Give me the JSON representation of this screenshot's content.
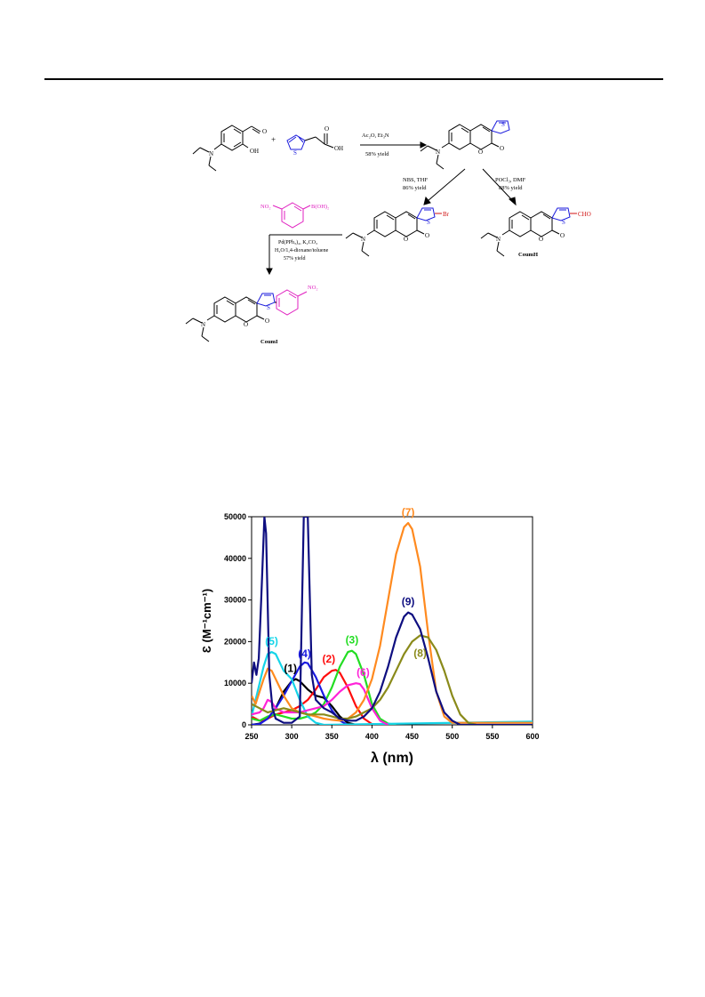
{
  "scheme": {
    "reagents": {
      "step1_conditions": "Ac₂O, Et₃N",
      "step1_yield": "58% yield",
      "step2a_conditions": "NBS, THF",
      "step2a_yield": "86% yield",
      "step2b_conditions": "POCl₃, DMF",
      "step2b_yield": "88% yield",
      "step3_conditions_1": "Pd(PPh₃)₄, K₂CO₃",
      "step3_conditions_2": "H₂O/1,4-dioxane/toluene",
      "step3_yield": "57% yield"
    },
    "atoms": {
      "oxygen": "O",
      "carbonyl_o": "O",
      "oh": "OH",
      "nitrogen": "N",
      "sulfur": "S",
      "bromine": "Br",
      "formyl": "CHO",
      "nitro": "NO₂",
      "boronic_acid": "B(OH)₂",
      "plus": "+"
    },
    "compound_labels": {
      "aldehyde_product": "CoumH",
      "nitrophenyl_product": "CoumI"
    },
    "colors": {
      "thiophene": "#1a1adc",
      "substituent": "#d01010",
      "nitrophenyl": "#e020c0",
      "skeleton": "#000000"
    }
  },
  "chart_data": {
    "type": "line",
    "xlabel": "λ (nm)",
    "ylabel": "Ɛ (M⁻¹cm⁻¹)",
    "xlim": [
      250,
      600
    ],
    "ylim": [
      0,
      50000
    ],
    "xticks": [
      250,
      300,
      350,
      400,
      450,
      500,
      550,
      600
    ],
    "yticks": [
      0,
      10000,
      20000,
      30000,
      40000,
      50000
    ],
    "grid": false,
    "series": [
      {
        "name": "(1)",
        "color": "#000000",
        "x": [
          250,
          260,
          270,
          280,
          290,
          300,
          305,
          310,
          320,
          330,
          340,
          350,
          360,
          370,
          380,
          400
        ],
        "y": [
          0,
          300,
          1500,
          4000,
          8000,
          10500,
          11000,
          10500,
          8500,
          7000,
          6500,
          4500,
          2000,
          500,
          0,
          0
        ]
      },
      {
        "name": "(2)",
        "color": "#ff0d0d",
        "x": [
          250,
          260,
          270,
          280,
          290,
          300,
          310,
          320,
          330,
          340,
          350,
          355,
          360,
          370,
          380,
          390,
          400,
          410
        ],
        "y": [
          2000,
          1000,
          1500,
          2500,
          3000,
          3500,
          4500,
          6000,
          8500,
          11500,
          13000,
          13200,
          12500,
          9000,
          4500,
          1500,
          200,
          0
        ]
      },
      {
        "name": "(3)",
        "color": "#22dd22",
        "x": [
          250,
          260,
          270,
          280,
          290,
          300,
          310,
          320,
          330,
          340,
          350,
          360,
          370,
          375,
          380,
          390,
          400,
          410,
          420,
          430
        ],
        "y": [
          1500,
          1000,
          2000,
          2500,
          2000,
          1500,
          1500,
          2000,
          3000,
          5000,
          9000,
          14000,
          17500,
          17800,
          17000,
          12000,
          5000,
          1500,
          300,
          0
        ]
      },
      {
        "name": "(4)",
        "color": "#1a1ae0",
        "x": [
          250,
          260,
          270,
          280,
          290,
          300,
          310,
          316,
          320,
          330,
          340,
          350,
          360,
          370
        ],
        "y": [
          0,
          200,
          1500,
          4000,
          7000,
          10500,
          14000,
          15000,
          14800,
          11500,
          7000,
          3500,
          1000,
          0
        ]
      },
      {
        "name": "(5)",
        "color": "#15d4e8",
        "x": [
          250,
          255,
          260,
          265,
          270,
          275,
          280,
          285,
          290,
          300,
          310,
          320,
          330,
          340,
          600
        ],
        "y": [
          2000,
          6000,
          10000,
          14000,
          17000,
          17500,
          17000,
          15000,
          13000,
          11000,
          6000,
          2000,
          500,
          0,
          800
        ]
      },
      {
        "name": "(6)",
        "color": "#ff22d8",
        "x": [
          250,
          260,
          265,
          270,
          275,
          280,
          290,
          300,
          310,
          320,
          330,
          340,
          350,
          360,
          370,
          380,
          385,
          390,
          400,
          410,
          420
        ],
        "y": [
          2500,
          3000,
          4000,
          6000,
          5500,
          4000,
          3000,
          3000,
          3000,
          3500,
          4000,
          4500,
          6000,
          8000,
          9500,
          10000,
          9800,
          8500,
          4000,
          1000,
          0
        ]
      },
      {
        "name": "(7)",
        "color": "#ff8a1f",
        "x": [
          250,
          255,
          260,
          265,
          270,
          275,
          280,
          290,
          300,
          310,
          320,
          330,
          340,
          350,
          360,
          370,
          380,
          390,
          400,
          410,
          420,
          430,
          440,
          445,
          450,
          460,
          470,
          480,
          490,
          500,
          600
        ],
        "y": [
          7000,
          5000,
          8000,
          11000,
          13500,
          13000,
          11000,
          7000,
          4000,
          3000,
          2500,
          2000,
          1500,
          1200,
          1000,
          1500,
          3000,
          6000,
          11000,
          19000,
          30000,
          41000,
          47500,
          48500,
          47000,
          38000,
          22000,
          8000,
          2000,
          500,
          500
        ]
      },
      {
        "name": "(8)",
        "color": "#8a8a1a",
        "x": [
          250,
          260,
          270,
          280,
          290,
          300,
          310,
          320,
          330,
          340,
          350,
          360,
          370,
          380,
          390,
          400,
          410,
          420,
          430,
          440,
          450,
          460,
          470,
          480,
          490,
          500,
          510,
          520,
          530
        ],
        "y": [
          5000,
          4000,
          3000,
          3500,
          4000,
          3500,
          3000,
          2500,
          2500,
          2500,
          2000,
          1500,
          1500,
          2000,
          3000,
          4000,
          6000,
          9000,
          13000,
          17000,
          20000,
          21500,
          21000,
          18000,
          13000,
          7000,
          2500,
          500,
          0
        ]
      },
      {
        "name": "(9)",
        "color": "#0e0e80",
        "x": [
          250,
          253,
          256,
          259,
          262,
          266,
          268,
          272,
          276,
          280,
          290,
          300,
          310,
          315,
          320,
          325,
          330,
          340,
          350,
          360,
          370,
          380,
          390,
          400,
          410,
          420,
          430,
          440,
          445,
          450,
          460,
          470,
          480,
          490,
          500,
          510,
          520,
          600
        ],
        "y": [
          10000,
          15000,
          12000,
          16000,
          30000,
          50000,
          46000,
          12000,
          4000,
          1500,
          500,
          500,
          2000,
          50000,
          50000,
          12000,
          6000,
          4000,
          3000,
          1500,
          1000,
          1000,
          2000,
          4000,
          8000,
          14000,
          21000,
          26000,
          27000,
          26500,
          23000,
          16000,
          8000,
          3000,
          1000,
          0,
          0,
          0
        ]
      }
    ],
    "annotations": [
      {
        "text": "(1)",
        "color": "#000000"
      },
      {
        "text": "(2)",
        "color": "#ff0d0d"
      },
      {
        "text": "(3)",
        "color": "#22dd22"
      },
      {
        "text": "(4)",
        "color": "#1a1ae0"
      },
      {
        "text": "(5)",
        "color": "#15d4e8"
      },
      {
        "text": "(6)",
        "color": "#ff22d8"
      },
      {
        "text": "(7)",
        "color": "#ff8a1f"
      },
      {
        "text": "(8)",
        "color": "#8a8a1a"
      },
      {
        "text": "(9)",
        "color": "#0e0e80"
      }
    ]
  }
}
